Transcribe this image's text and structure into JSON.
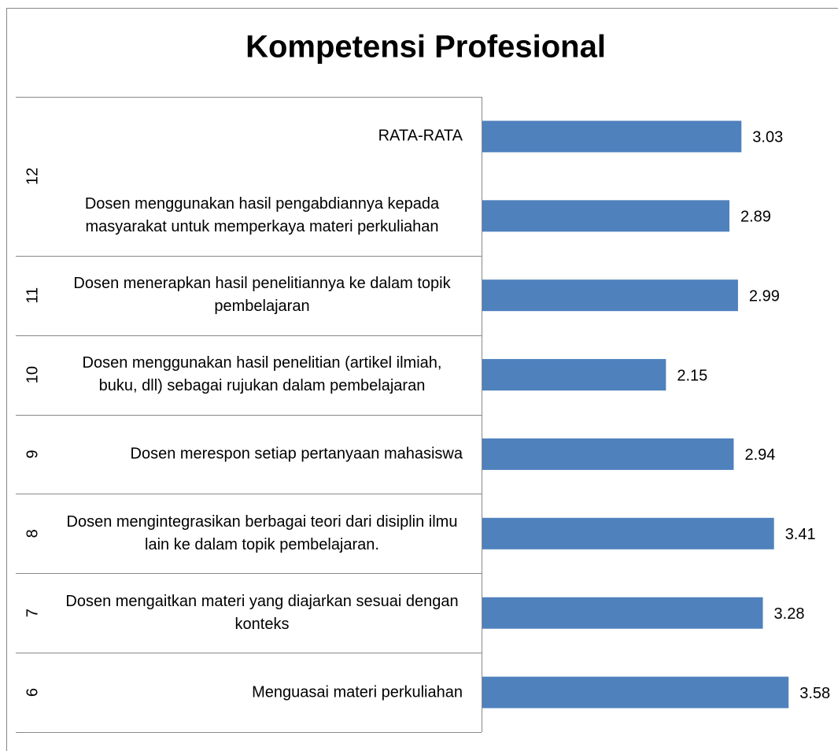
{
  "chart_data": {
    "type": "bar",
    "orientation": "horizontal",
    "title": "Kompetensi Profesional",
    "color": "#4f81bd",
    "xlim": [
      0,
      4
    ],
    "groups": [
      {
        "name": "12",
        "categories": [
          "RATA-RATA",
          "Dosen menggunakan hasil pengabdiannya kepada masyarakat untuk memperkaya materi perkuliahan"
        ],
        "values": [
          3.03,
          2.89
        ]
      },
      {
        "name": "11",
        "categories": [
          "Dosen menerapkan hasil penelitiannya ke dalam topik pembelajaran"
        ],
        "values": [
          2.99
        ]
      },
      {
        "name": "10",
        "categories": [
          "Dosen menggunakan hasil penelitian (artikel ilmiah, buku, dll) sebagai rujukan dalam pembelajaran"
        ],
        "values": [
          2.15
        ]
      },
      {
        "name": "9",
        "categories": [
          "Dosen merespon setiap pertanyaan mahasiswa"
        ],
        "values": [
          2.94
        ]
      },
      {
        "name": "8",
        "categories": [
          "Dosen mengintegrasikan berbagai teori dari disiplin ilmu lain ke dalam topik pembelajaran."
        ],
        "values": [
          3.41
        ]
      },
      {
        "name": "7",
        "categories": [
          "Dosen mengaitkan materi yang diajarkan sesuai dengan konteks"
        ],
        "values": [
          3.28
        ]
      },
      {
        "name": "6",
        "categories": [
          "Menguasai materi perkuliahan"
        ],
        "values": [
          3.58
        ]
      }
    ]
  }
}
